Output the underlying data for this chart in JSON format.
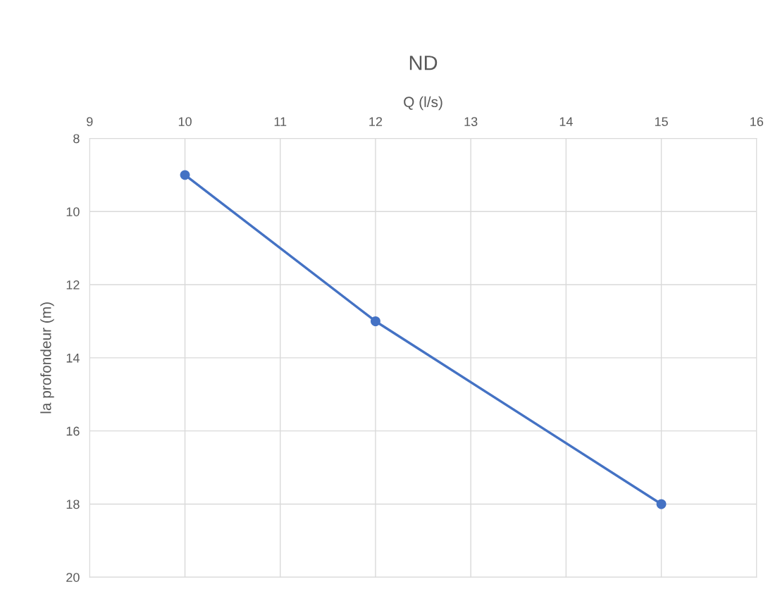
{
  "chart_data": {
    "type": "line",
    "title": "ND",
    "xlabel": "Q (l/s)",
    "ylabel": "la profondeur (m)",
    "x": [
      10,
      12,
      15
    ],
    "series": [
      {
        "color": "#4472c4",
        "values": [
          9,
          13,
          18
        ]
      }
    ],
    "xlim": [
      9,
      16
    ],
    "xticks": [
      9,
      10,
      11,
      12,
      13,
      14,
      15,
      16
    ],
    "ylim": [
      20,
      8
    ],
    "yticks": [
      8,
      10,
      12,
      14,
      16,
      18,
      20
    ],
    "grid": true,
    "marker": "circle",
    "line_style": "solid"
  }
}
